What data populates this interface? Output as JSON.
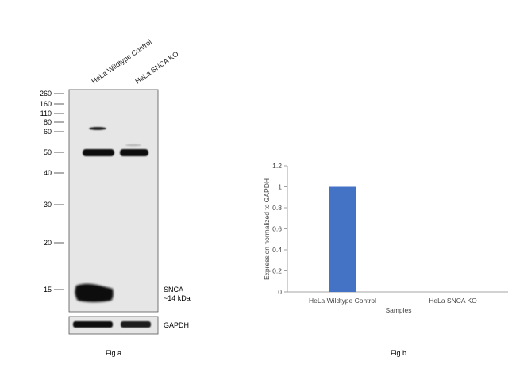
{
  "fig_a": {
    "lane_labels": [
      "HeLa Wildtype Control",
      "HeLa SNCA KO"
    ],
    "markers": [
      "260",
      "160",
      "110",
      "80",
      "60",
      "50",
      "40",
      "30",
      "20",
      "15"
    ],
    "target_label_line1": "SNCA",
    "target_label_line2": "~14 kDa",
    "loading_control_label": "GAPDH",
    "caption": "Fig a"
  },
  "fig_b": {
    "caption": "Fig b"
  },
  "chart_data": {
    "type": "bar",
    "categories": [
      "HeLa Wildtype Control",
      "HeLa SNCA KO"
    ],
    "values": [
      1.0,
      0.0
    ],
    "xlabel": "Samples",
    "ylabel": "Expression normalized to GAPDH",
    "ylim": [
      0,
      1.2
    ],
    "yticks": [
      "0",
      "0.2",
      "0.4",
      "0.6",
      "0.8",
      "1",
      "1.2"
    ],
    "bar_color": "#4472c4",
    "grid": false,
    "legend": "none"
  },
  "colors": {
    "blot_bg": "#e6e6e6",
    "band": "#111111"
  }
}
